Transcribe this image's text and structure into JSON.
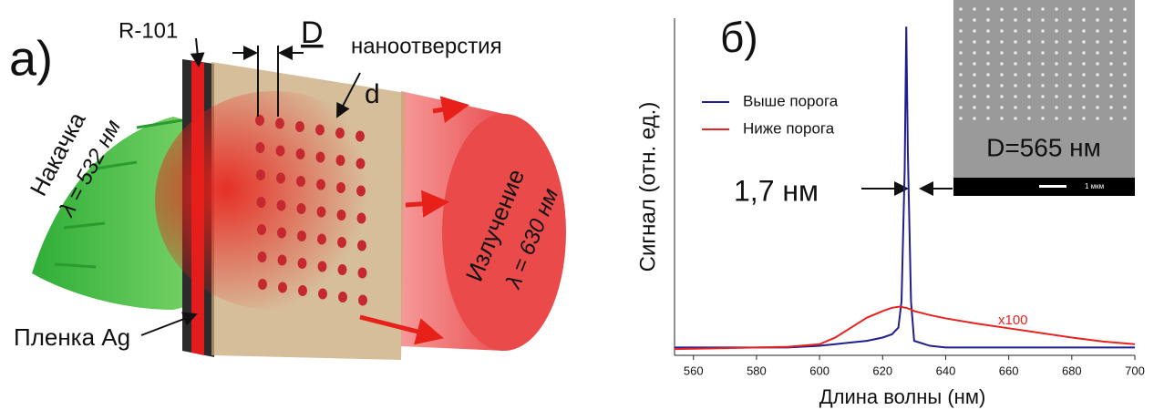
{
  "panel_a": {
    "label": "а)",
    "dye": "R-101",
    "period": "D",
    "holes": "наноотверстия",
    "diameter": "d",
    "pump": "Накачка",
    "pump_wavelength": "λ = 532 нм",
    "emission": "Излучение",
    "emission_wavelength": "λ = 630 нм",
    "film": "Пленка Ag"
  },
  "chart_data": {
    "type": "line",
    "panel_label": "б)",
    "x_label": "Длина волны (нм)",
    "y_label": "Сигнал (отн. ед.)",
    "x": [
      554,
      570,
      590,
      600,
      605,
      610,
      615,
      620,
      623,
      625,
      626,
      627,
      627.5,
      628,
      629,
      630,
      635,
      640,
      650,
      660,
      670,
      680,
      690,
      700
    ],
    "series": [
      {
        "name": "Выше порога",
        "color": "#1f1f8f",
        "values": [
          0.01,
          0.01,
          0.01,
          0.015,
          0.02,
          0.025,
          0.03,
          0.04,
          0.05,
          0.07,
          0.15,
          0.55,
          0.98,
          0.6,
          0.15,
          0.03,
          0.015,
          0.01,
          0.01,
          0.01,
          0.01,
          0.01,
          0.01,
          0.01
        ]
      },
      {
        "name": "Ниже порога",
        "color": "#e8231f",
        "values": [
          0.005,
          0.008,
          0.012,
          0.02,
          0.04,
          0.07,
          0.1,
          0.12,
          0.13,
          0.133,
          0.133,
          0.13,
          0.13,
          0.128,
          0.125,
          0.12,
          0.108,
          0.098,
          0.082,
          0.068,
          0.054,
          0.04,
          0.028,
          0.02
        ]
      }
    ],
    "xlim": [
      554,
      700
    ],
    "xticks": [
      560,
      580,
      600,
      620,
      640,
      660,
      680,
      700
    ],
    "ylim": [
      0,
      1
    ],
    "linewidth_annotation": "1,7 нм",
    "scale_annotation": "x100",
    "inset": {
      "label": "D=565 нм",
      "scale_bar": "1 мкм"
    }
  }
}
